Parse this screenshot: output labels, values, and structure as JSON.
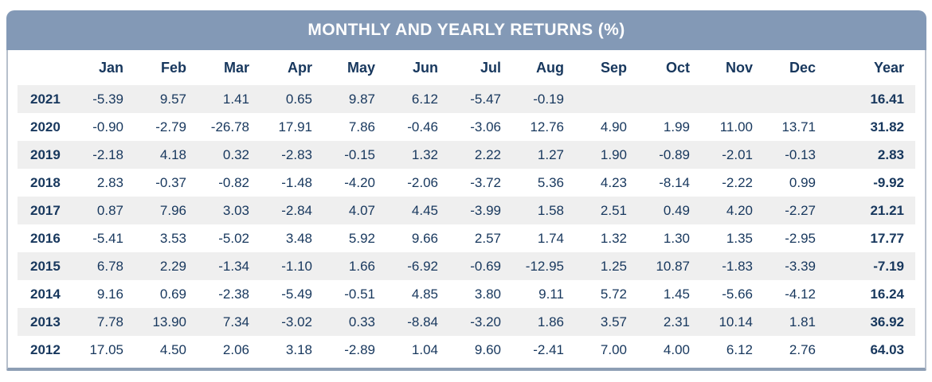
{
  "chart_data": {
    "type": "table",
    "title": "MONTHLY AND YEARLY RETURNS (%)",
    "columns": [
      "Jan",
      "Feb",
      "Mar",
      "Apr",
      "May",
      "Jun",
      "Jul",
      "Aug",
      "Sep",
      "Oct",
      "Nov",
      "Dec",
      "Year"
    ],
    "rows": [
      {
        "year": "2021",
        "months": [
          "-5.39",
          "9.57",
          "1.41",
          "0.65",
          "9.87",
          "6.12",
          "-5.47",
          "-0.19",
          "",
          "",
          "",
          ""
        ],
        "year_total": "16.41"
      },
      {
        "year": "2020",
        "months": [
          "-0.90",
          "-2.79",
          "-26.78",
          "17.91",
          "7.86",
          "-0.46",
          "-3.06",
          "12.76",
          "4.90",
          "1.99",
          "11.00",
          "13.71"
        ],
        "year_total": "31.82"
      },
      {
        "year": "2019",
        "months": [
          "-2.18",
          "4.18",
          "0.32",
          "-2.83",
          "-0.15",
          "1.32",
          "2.22",
          "1.27",
          "1.90",
          "-0.89",
          "-2.01",
          "-0.13"
        ],
        "year_total": "2.83"
      },
      {
        "year": "2018",
        "months": [
          "2.83",
          "-0.37",
          "-0.82",
          "-1.48",
          "-4.20",
          "-2.06",
          "-3.72",
          "5.36",
          "4.23",
          "-8.14",
          "-2.22",
          "0.99"
        ],
        "year_total": "-9.92"
      },
      {
        "year": "2017",
        "months": [
          "0.87",
          "7.96",
          "3.03",
          "-2.84",
          "4.07",
          "4.45",
          "-3.99",
          "1.58",
          "2.51",
          "0.49",
          "4.20",
          "-2.27"
        ],
        "year_total": "21.21"
      },
      {
        "year": "2016",
        "months": [
          "-5.41",
          "3.53",
          "-5.02",
          "3.48",
          "5.92",
          "9.66",
          "2.57",
          "1.74",
          "1.32",
          "1.30",
          "1.35",
          "-2.95"
        ],
        "year_total": "17.77"
      },
      {
        "year": "2015",
        "months": [
          "6.78",
          "2.29",
          "-1.34",
          "-1.10",
          "1.66",
          "-6.92",
          "-0.69",
          "-12.95",
          "1.25",
          "10.87",
          "-1.83",
          "-3.39"
        ],
        "year_total": "-7.19"
      },
      {
        "year": "2014",
        "months": [
          "9.16",
          "0.69",
          "-2.38",
          "-5.49",
          "-0.51",
          "4.85",
          "3.80",
          "9.11",
          "5.72",
          "1.45",
          "-5.66",
          "-4.12"
        ],
        "year_total": "16.24"
      },
      {
        "year": "2013",
        "months": [
          "7.78",
          "13.90",
          "7.34",
          "-3.02",
          "0.33",
          "-8.84",
          "-3.20",
          "1.86",
          "3.57",
          "2.31",
          "10.14",
          "1.81"
        ],
        "year_total": "36.92"
      },
      {
        "year": "2012",
        "months": [
          "17.05",
          "4.50",
          "2.06",
          "3.18",
          "-2.89",
          "1.04",
          "9.60",
          "-2.41",
          "7.00",
          "4.00",
          "6.12",
          "2.76"
        ],
        "year_total": "64.03"
      }
    ],
    "layout": {
      "striped_years": [
        "2021",
        "2019",
        "2017",
        "2015",
        "2013"
      ],
      "value_alignment": "right"
    },
    "colors": {
      "header_bg": "#8399b6",
      "header_text": "#ffffff",
      "body_text": "#17375d",
      "stripe_bg": "#efefef",
      "border": "#b7c0cc",
      "border_bottom": "#8d9eb4"
    }
  }
}
